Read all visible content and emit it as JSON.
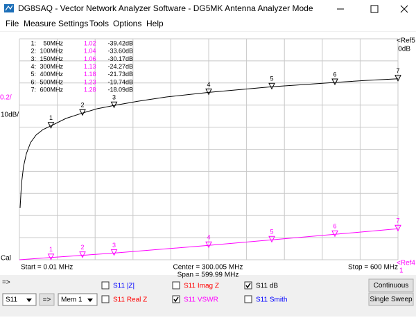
{
  "window": {
    "title": "DG8SAQ  -  Vector Network Analyzer Software - DG5MK Antenna Analyzer Mode"
  },
  "menu": [
    "File",
    "Measure",
    "Settings",
    "Tools",
    "Options",
    "Help"
  ],
  "plot": {
    "left_labels": {
      "vswr_scale": "0.2/",
      "db_scale": "10dB/",
      "cal": "Cal"
    },
    "right_labels": {
      "ref_db": "<Ref5",
      "ref_db_value": "0dB",
      "ref_vswr": "<Ref4",
      "ref_vswr_value": "1"
    },
    "markers": [
      {
        "index": "1:",
        "freq": "50MHz",
        "vswr": "1.02",
        "db": "-39.42dB",
        "label": "1"
      },
      {
        "index": "2:",
        "freq": "100MHz",
        "vswr": "1.04",
        "db": "-33.60dB",
        "label": "2"
      },
      {
        "index": "3:",
        "freq": "150MHz",
        "vswr": "1.06",
        "db": "-30.17dB",
        "label": "3"
      },
      {
        "index": "4:",
        "freq": "300MHz",
        "vswr": "1.13",
        "db": "-24.27dB",
        "label": "4"
      },
      {
        "index": "5:",
        "freq": "400MHz",
        "vswr": "1.18",
        "db": "-21.73dB",
        "label": "5"
      },
      {
        "index": "6:",
        "freq": "500MHz",
        "vswr": "1.23",
        "db": "-19.74dB",
        "label": "6"
      },
      {
        "index": "7:",
        "freq": "600MHz",
        "vswr": "1.28",
        "db": "-18.09dB",
        "label": "7"
      }
    ]
  },
  "sweep": {
    "start": "Start = 0.01 MHz",
    "center": "Center = 300.005 MHz",
    "span": "Span = 599.99 MHz",
    "stop": "Stop = 600 MHz"
  },
  "controls": {
    "arrow_label": "=>",
    "param_select": "S11",
    "copy_button": "=>",
    "memory_select": "Mem 1",
    "traces": [
      {
        "label": "S11  |Z|",
        "checked": false,
        "color": "#0000ff"
      },
      {
        "label": "S11  Imag Z",
        "checked": false,
        "color": "#ff0000"
      },
      {
        "label": "S11  dB",
        "checked": true,
        "color": "#000000"
      },
      {
        "label": "S11  Real Z",
        "checked": false,
        "color": "#ff0000"
      },
      {
        "label": "S11  VSWR",
        "checked": true,
        "color": "#ff00ff"
      },
      {
        "label": "S11  Smith",
        "checked": false,
        "color": "#0000ff"
      }
    ],
    "buttons": [
      "Continuous",
      "Single Sweep"
    ]
  }
}
